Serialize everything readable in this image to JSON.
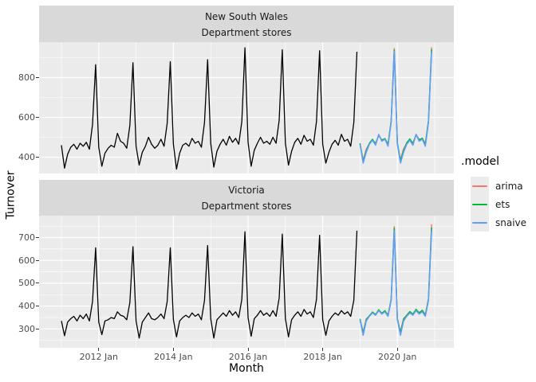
{
  "figure": {
    "background": "#FFFFFF",
    "panel_background": "#EBEBEB",
    "strip_background": "#D9D9D9",
    "grid_color": "#FFFFFF",
    "y_axis_title": "Turnover",
    "x_axis_title": "Month",
    "x_tick_labels": [
      "2012 Jan",
      "2014 Jan",
      "2016 Jan",
      "2018 Jan",
      "2020 Jan"
    ],
    "legend": {
      "title": ".model",
      "items": [
        {
          "label": "arima",
          "color": "#F8766D"
        },
        {
          "label": "ets",
          "color": "#00BA38"
        },
        {
          "label": "snaive",
          "color": "#619CFF"
        }
      ]
    }
  },
  "chart_data": [
    {
      "type": "line",
      "facet_region": "New South Wales",
      "facet_industry": "Department stores",
      "x_start": "2011 Jan",
      "x_frequency": "monthly",
      "x_range": [
        "2011 Jan",
        "2020 Dec"
      ],
      "yticks": [
        400,
        600,
        800
      ],
      "ylim": [
        318,
        978
      ],
      "legend_position": "right",
      "grid": true,
      "series": [
        {
          "name": "history",
          "color": "#000000",
          "start_index": 0,
          "values": [
            460,
            345,
            415,
            450,
            465,
            440,
            470,
            455,
            475,
            440,
            565,
            865,
            450,
            355,
            420,
            445,
            460,
            450,
            520,
            480,
            470,
            445,
            560,
            875,
            455,
            360,
            425,
            455,
            500,
            465,
            445,
            460,
            490,
            455,
            570,
            880,
            465,
            340,
            420,
            460,
            470,
            455,
            495,
            470,
            480,
            450,
            575,
            890,
            470,
            350,
            430,
            465,
            490,
            460,
            505,
            475,
            495,
            465,
            580,
            950,
            475,
            355,
            435,
            470,
            500,
            470,
            480,
            465,
            500,
            470,
            585,
            940,
            470,
            360,
            430,
            475,
            495,
            465,
            510,
            480,
            490,
            460,
            580,
            935,
            465,
            370,
            425,
            465,
            485,
            460,
            515,
            480,
            490,
            455,
            575,
            930
          ]
        },
        {
          "name": "arima",
          "color": "#F8766D",
          "start_index": 96,
          "values": [
            464,
            385,
            440,
            468,
            487,
            470,
            508,
            488,
            490,
            468,
            578,
            946,
            466,
            387,
            442,
            470,
            489,
            472,
            510,
            490,
            492,
            470,
            580,
            952
          ]
        },
        {
          "name": "ets",
          "color": "#00BA38",
          "start_index": 96,
          "values": [
            470,
            378,
            432,
            470,
            490,
            466,
            512,
            484,
            494,
            462,
            582,
            938,
            472,
            380,
            434,
            472,
            492,
            468,
            514,
            486,
            496,
            464,
            584,
            942
          ]
        },
        {
          "name": "snaive",
          "color": "#619CFF",
          "start_index": 96,
          "values": [
            465,
            370,
            425,
            465,
            485,
            460,
            515,
            480,
            490,
            455,
            575,
            930,
            465,
            370,
            425,
            465,
            485,
            460,
            515,
            480,
            490,
            455,
            575,
            930
          ]
        }
      ]
    },
    {
      "type": "line",
      "facet_region": "Victoria",
      "facet_industry": "Department stores",
      "x_start": "2011 Jan",
      "x_frequency": "monthly",
      "x_range": [
        "2011 Jan",
        "2020 Dec"
      ],
      "yticks": [
        300,
        400,
        500,
        600,
        700
      ],
      "ylim": [
        217,
        796
      ],
      "legend_position": "right",
      "grid": true,
      "series": [
        {
          "name": "history",
          "color": "#000000",
          "start_index": 0,
          "values": [
            335,
            270,
            330,
            345,
            355,
            335,
            360,
            345,
            365,
            335,
            420,
            655,
            330,
            275,
            335,
            340,
            350,
            345,
            375,
            360,
            355,
            340,
            415,
            660,
            335,
            260,
            330,
            350,
            370,
            345,
            340,
            350,
            365,
            345,
            420,
            655,
            340,
            265,
            335,
            350,
            360,
            350,
            370,
            355,
            365,
            340,
            425,
            665,
            345,
            260,
            340,
            355,
            370,
            355,
            380,
            360,
            375,
            350,
            430,
            725,
            350,
            268,
            345,
            360,
            380,
            360,
            370,
            355,
            380,
            355,
            435,
            715,
            345,
            265,
            340,
            360,
            375,
            355,
            385,
            365,
            375,
            350,
            430,
            710,
            340,
            272,
            335,
            355,
            370,
            360,
            380,
            365,
            375,
            355,
            425,
            730
          ]
        },
        {
          "name": "arima",
          "color": "#F8766D",
          "start_index": 96,
          "values": [
            338,
            286,
            344,
            356,
            372,
            364,
            380,
            370,
            377,
            362,
            428,
            748,
            340,
            288,
            346,
            358,
            374,
            366,
            382,
            372,
            379,
            364,
            430,
            758
          ]
        },
        {
          "name": "ets",
          "color": "#00BA38",
          "start_index": 96,
          "values": [
            344,
            280,
            340,
            358,
            374,
            362,
            384,
            368,
            380,
            358,
            430,
            740,
            346,
            282,
            342,
            360,
            376,
            364,
            386,
            370,
            382,
            360,
            432,
            744
          ]
        },
        {
          "name": "snaive",
          "color": "#619CFF",
          "start_index": 96,
          "values": [
            340,
            272,
            335,
            355,
            370,
            360,
            380,
            365,
            375,
            355,
            425,
            730,
            340,
            272,
            335,
            355,
            370,
            360,
            380,
            365,
            375,
            355,
            425,
            730
          ]
        }
      ]
    }
  ]
}
